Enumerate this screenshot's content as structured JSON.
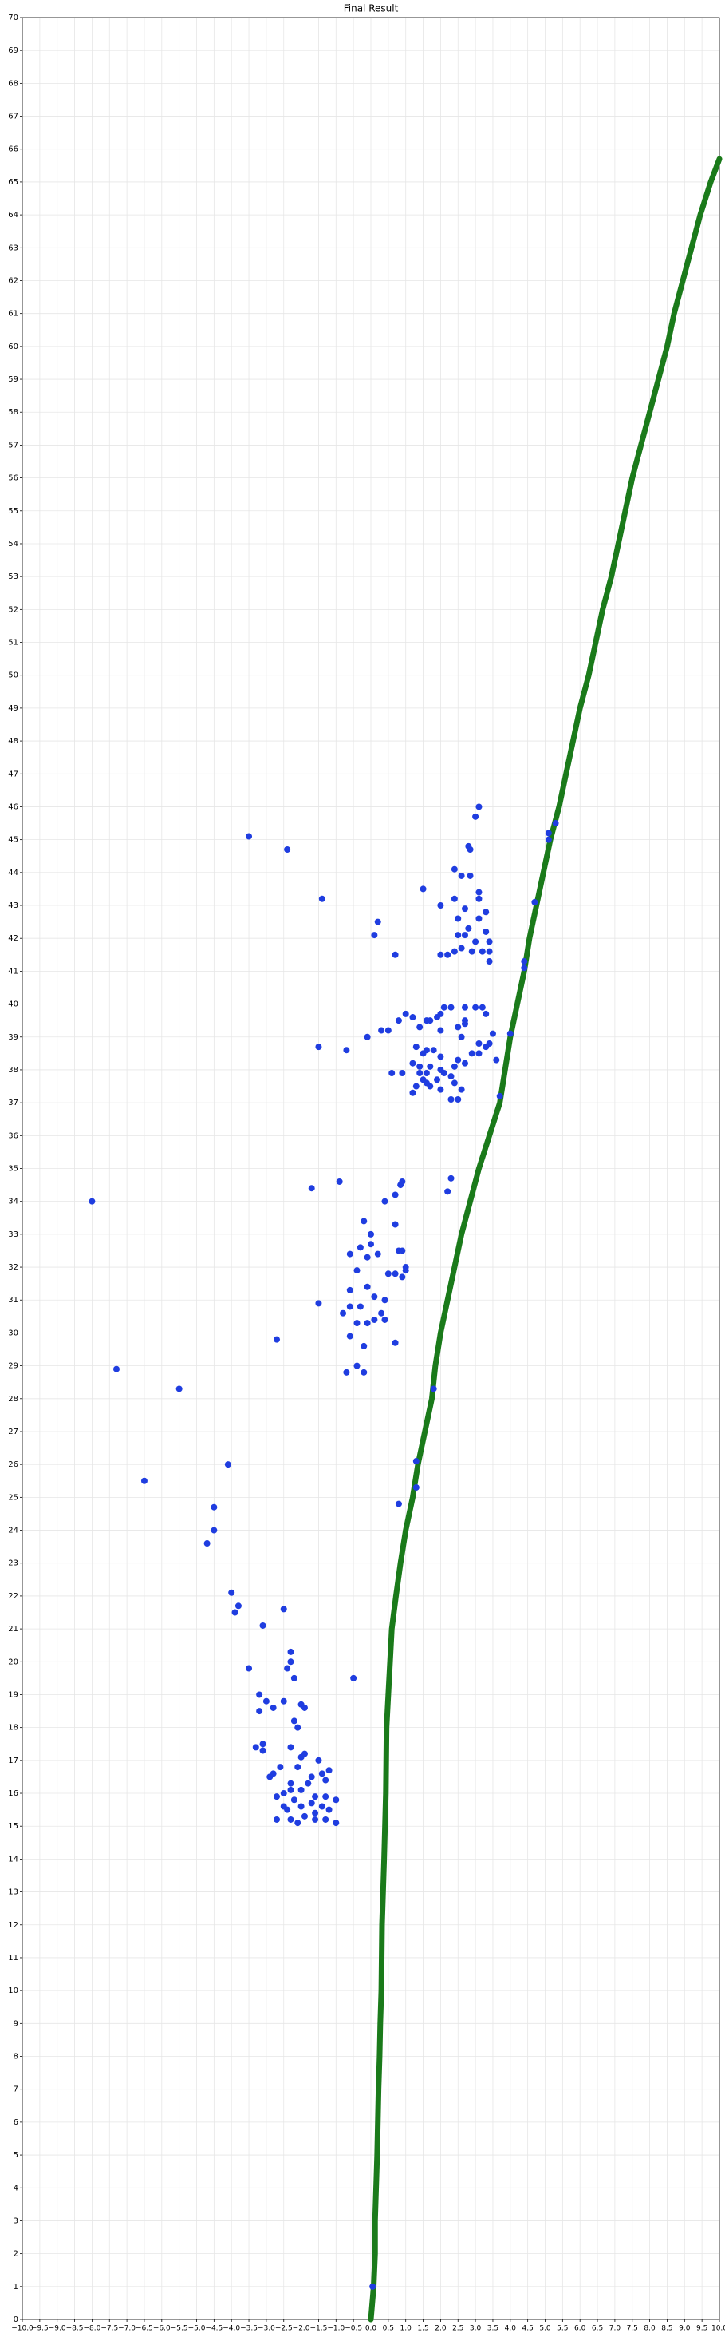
{
  "chart_data": {
    "type": "scatter",
    "title": "Final Result",
    "xlim": [
      -10,
      10
    ],
    "ylim": [
      0,
      70
    ],
    "grid": true,
    "xticks": [
      {
        "value": -10,
        "label": "−10.0"
      },
      {
        "value": -9.5,
        "label": "−9.5"
      },
      {
        "value": -9,
        "label": "−9.0"
      },
      {
        "value": -8.5,
        "label": "−8.5"
      },
      {
        "value": -8,
        "label": "−8.0"
      },
      {
        "value": -7.5,
        "label": "−7.5"
      },
      {
        "value": -7,
        "label": "−7.0"
      },
      {
        "value": -6.5,
        "label": "−6.5"
      },
      {
        "value": -6,
        "label": "−6.0"
      },
      {
        "value": -5.5,
        "label": "−5.5"
      },
      {
        "value": -5,
        "label": "−5.0"
      },
      {
        "value": -4.5,
        "label": "−4.5"
      },
      {
        "value": -4,
        "label": "−4.0"
      },
      {
        "value": -3.5,
        "label": "−3.5"
      },
      {
        "value": -3,
        "label": "−3.0"
      },
      {
        "value": -2.5,
        "label": "−2.5"
      },
      {
        "value": -2,
        "label": "−2.0"
      },
      {
        "value": -1.5,
        "label": "−1.5"
      },
      {
        "value": -1,
        "label": "−1.0"
      },
      {
        "value": -0.5,
        "label": "−0.5"
      },
      {
        "value": 0,
        "label": "0.0"
      },
      {
        "value": 0.5,
        "label": "0.5"
      },
      {
        "value": 1,
        "label": "1.0"
      },
      {
        "value": 1.5,
        "label": "1.5"
      },
      {
        "value": 2,
        "label": "2.0"
      },
      {
        "value": 2.5,
        "label": "2.5"
      },
      {
        "value": 3,
        "label": "3.0"
      },
      {
        "value": 3.5,
        "label": "3.5"
      },
      {
        "value": 4,
        "label": "4.0"
      },
      {
        "value": 4.5,
        "label": "4.5"
      },
      {
        "value": 5,
        "label": "5.0"
      },
      {
        "value": 5.5,
        "label": "5.5"
      },
      {
        "value": 6,
        "label": "6.0"
      },
      {
        "value": 6.5,
        "label": "6.5"
      },
      {
        "value": 7,
        "label": "7.0"
      },
      {
        "value": 7.5,
        "label": "7.5"
      },
      {
        "value": 8,
        "label": "8.0"
      },
      {
        "value": 8.5,
        "label": "8.5"
      },
      {
        "value": 9,
        "label": "9.0"
      },
      {
        "value": 9.5,
        "label": "9.5"
      },
      {
        "value": 10,
        "label": "10.0"
      }
    ],
    "yticks": [
      0,
      1,
      2,
      3,
      4,
      5,
      6,
      7,
      8,
      9,
      10,
      11,
      12,
      13,
      14,
      15,
      16,
      17,
      18,
      19,
      20,
      21,
      22,
      23,
      24,
      25,
      26,
      27,
      28,
      29,
      30,
      31,
      32,
      33,
      34,
      35,
      36,
      37,
      38,
      39,
      40,
      41,
      42,
      43,
      44,
      45,
      46,
      47,
      48,
      49,
      50,
      51,
      52,
      53,
      54,
      55,
      56,
      57,
      58,
      59,
      60,
      61,
      62,
      63,
      64,
      65,
      66,
      67,
      68,
      69,
      70
    ],
    "series": [
      {
        "color": "#1a7a1a",
        "style": "line",
        "x": [
          0,
          0.08,
          0.12,
          0.12,
          0.15,
          0.18,
          0.2,
          0.22,
          0.25,
          0.27,
          0.3,
          0.32,
          0.38,
          0.43,
          0.45,
          0.55,
          0.6,
          0.72,
          0.85,
          1.0,
          1.2,
          1.35,
          1.55,
          1.75,
          1.85,
          2.0,
          2.2,
          2.4,
          2.6,
          2.85,
          3.1,
          3.4,
          3.7,
          3.85,
          4.0,
          4.2,
          4.4,
          4.55,
          4.75,
          4.95,
          5.15,
          5.4,
          5.6,
          5.8,
          6.0,
          6.25,
          6.45,
          6.65,
          6.9,
          7.1,
          7.3,
          7.5,
          7.75,
          8.0,
          8.25,
          8.5,
          8.7,
          8.95,
          9.2,
          9.45,
          9.75,
          10.0
        ],
        "values": [
          0,
          1,
          2,
          3,
          4,
          5,
          6,
          7,
          8,
          9,
          10,
          12,
          14,
          16,
          18,
          20,
          21,
          22,
          23,
          24,
          25,
          26,
          27,
          28,
          29,
          30,
          31,
          32,
          33,
          34,
          35,
          36,
          37,
          38,
          39,
          40,
          41,
          42,
          43,
          44,
          45,
          46,
          47,
          48,
          49,
          50,
          51,
          52,
          53,
          54,
          55,
          56,
          57,
          58,
          59,
          60,
          61,
          62,
          63,
          64,
          65,
          65.7
        ]
      },
      {
        "color": "#1f3de0",
        "style": "markers",
        "x": [
          -8.0,
          -7.3,
          -5.5,
          -6.5,
          -4.1,
          -4.5,
          -4.5,
          -4.7,
          -4.0,
          -3.8,
          -3.9,
          -3.1,
          -2.5,
          -3.5,
          -2.4,
          -1.4,
          -1.5,
          -0.7,
          -2.7,
          -1.7,
          -1.5,
          -0.9,
          -0.5,
          0.8,
          0.2,
          0.1,
          0.7,
          -3.5,
          -3.2,
          -3.0,
          -2.8,
          -3.2,
          -2.3,
          -2.3,
          -2.4,
          -2.2,
          -2.5,
          -2.0,
          -1.9,
          -2.2,
          -2.1,
          -3.3,
          -3.1,
          -3.1,
          -2.3,
          -2.0,
          -1.9,
          -2.1,
          -1.5,
          -1.2,
          -1.4,
          -2.6,
          -2.9,
          -2.8,
          -2.3,
          -1.8,
          -2.0,
          -1.7,
          -1.3,
          -2.5,
          -2.7,
          -2.2,
          -2.3,
          -2.0,
          -1.7,
          -1.6,
          -1.4,
          -1.2,
          -1.0,
          -2.5,
          -2.7,
          -2.3,
          -2.1,
          -1.9,
          -1.6,
          -1.3,
          -1.0,
          -1.6,
          -1.3,
          -2.4,
          0.9,
          0.85,
          0.4,
          0.7,
          -0.2,
          0.0,
          0.7,
          -0.3,
          0.0,
          -0.6,
          -0.1,
          0.2,
          0.8,
          0.9,
          -0.4,
          0.5,
          0.7,
          1.0,
          0.9,
          1.0,
          -0.1,
          -0.6,
          0.1,
          0.4,
          -0.3,
          -0.6,
          0.3,
          0.1,
          0.4,
          -0.1,
          -0.8,
          -0.4,
          -0.6,
          -0.2,
          0.7,
          -0.4,
          -0.2,
          -0.7,
          3.1,
          3.0,
          2.8,
          2.85,
          2.4,
          2.6,
          2.85,
          1.5,
          3.1,
          3.1,
          2.4,
          2.0,
          2.7,
          3.3,
          3.1,
          2.5,
          2.8,
          3.3,
          2.5,
          2.7,
          3.0,
          3.4,
          2.2,
          2.0,
          2.6,
          2.9,
          3.2,
          3.4,
          3.4,
          2.4,
          2.1,
          2.3,
          2.7,
          3.0,
          3.2,
          2.0,
          3.3,
          1.0,
          1.2,
          0.8,
          1.6,
          1.7,
          2.7,
          1.9,
          2.5,
          2.7,
          1.4,
          0.3,
          0.5,
          -0.1,
          2.0,
          3.5,
          3.1,
          3.3,
          3.4,
          2.6,
          1.3,
          1.6,
          1.8,
          1.5,
          2.0,
          2.5,
          2.9,
          3.1,
          3.6,
          1.2,
          1.4,
          1.7,
          2.0,
          2.4,
          2.7,
          0.6,
          0.9,
          1.4,
          1.6,
          2.1,
          2.3,
          1.5,
          1.9,
          2.4,
          1.3,
          1.7,
          2.0,
          1.2,
          2.3,
          2.5,
          2.6,
          1.6,
          0.05,
          1.3,
          1.3,
          1.8,
          3.7,
          4.0,
          4.4,
          4.4,
          4.7,
          5.1,
          5.1,
          5.3,
          2.3,
          2.2
        ],
        "values": [
          34.0,
          28.9,
          28.3,
          25.5,
          26.0,
          24.7,
          24.0,
          23.6,
          22.1,
          21.7,
          21.5,
          21.1,
          21.6,
          45.1,
          44.7,
          43.2,
          38.7,
          38.6,
          29.8,
          34.4,
          30.9,
          34.6,
          19.5,
          24.8,
          42.5,
          42.1,
          41.5,
          19.8,
          19.0,
          18.8,
          18.6,
          18.5,
          20.3,
          20.0,
          19.8,
          19.5,
          18.8,
          18.7,
          18.6,
          18.2,
          18.0,
          17.4,
          17.3,
          17.5,
          17.4,
          17.1,
          17.2,
          16.8,
          17.0,
          16.7,
          16.6,
          16.8,
          16.5,
          16.6,
          16.3,
          16.3,
          16.1,
          16.5,
          16.4,
          16.0,
          15.9,
          15.8,
          16.1,
          15.6,
          15.7,
          15.4,
          15.6,
          15.5,
          15.8,
          15.6,
          15.2,
          15.2,
          15.1,
          15.3,
          15.2,
          15.2,
          15.1,
          15.9,
          15.9,
          15.5,
          34.6,
          34.5,
          34.0,
          34.2,
          33.4,
          33.0,
          33.3,
          32.6,
          32.7,
          32.4,
          32.3,
          32.4,
          32.5,
          32.5,
          31.9,
          31.8,
          31.8,
          32.0,
          31.7,
          31.9,
          31.4,
          31.3,
          31.1,
          31.0,
          30.8,
          30.8,
          30.6,
          30.4,
          30.4,
          30.3,
          30.6,
          30.3,
          29.9,
          29.6,
          29.7,
          29.0,
          28.8,
          28.8,
          46.0,
          45.7,
          44.8,
          44.7,
          44.1,
          43.9,
          43.9,
          43.5,
          43.4,
          43.2,
          43.2,
          43.0,
          42.9,
          42.8,
          42.6,
          42.6,
          42.3,
          42.2,
          42.1,
          42.1,
          41.9,
          41.9,
          41.5,
          41.5,
          41.7,
          41.6,
          41.6,
          41.3,
          41.6,
          41.6,
          39.9,
          39.9,
          39.9,
          39.9,
          39.9,
          39.7,
          39.7,
          39.7,
          39.6,
          39.5,
          39.5,
          39.5,
          39.5,
          39.6,
          39.3,
          39.4,
          39.3,
          39.2,
          39.2,
          39.0,
          39.2,
          39.1,
          38.8,
          38.7,
          38.8,
          39.0,
          38.7,
          38.6,
          38.6,
          38.5,
          38.4,
          38.3,
          38.5,
          38.5,
          38.3,
          38.2,
          38.1,
          38.1,
          38.0,
          38.1,
          38.2,
          37.9,
          37.9,
          37.9,
          37.9,
          37.9,
          37.8,
          37.7,
          37.7,
          37.6,
          37.5,
          37.5,
          37.4,
          37.3,
          37.1,
          37.1,
          37.4,
          37.6,
          1.0,
          25.3,
          26.1,
          28.3,
          37.2,
          39.1,
          41.1,
          41.3,
          43.1,
          45.0,
          45.2,
          45.5,
          34.7,
          34.3
        ]
      }
    ]
  }
}
